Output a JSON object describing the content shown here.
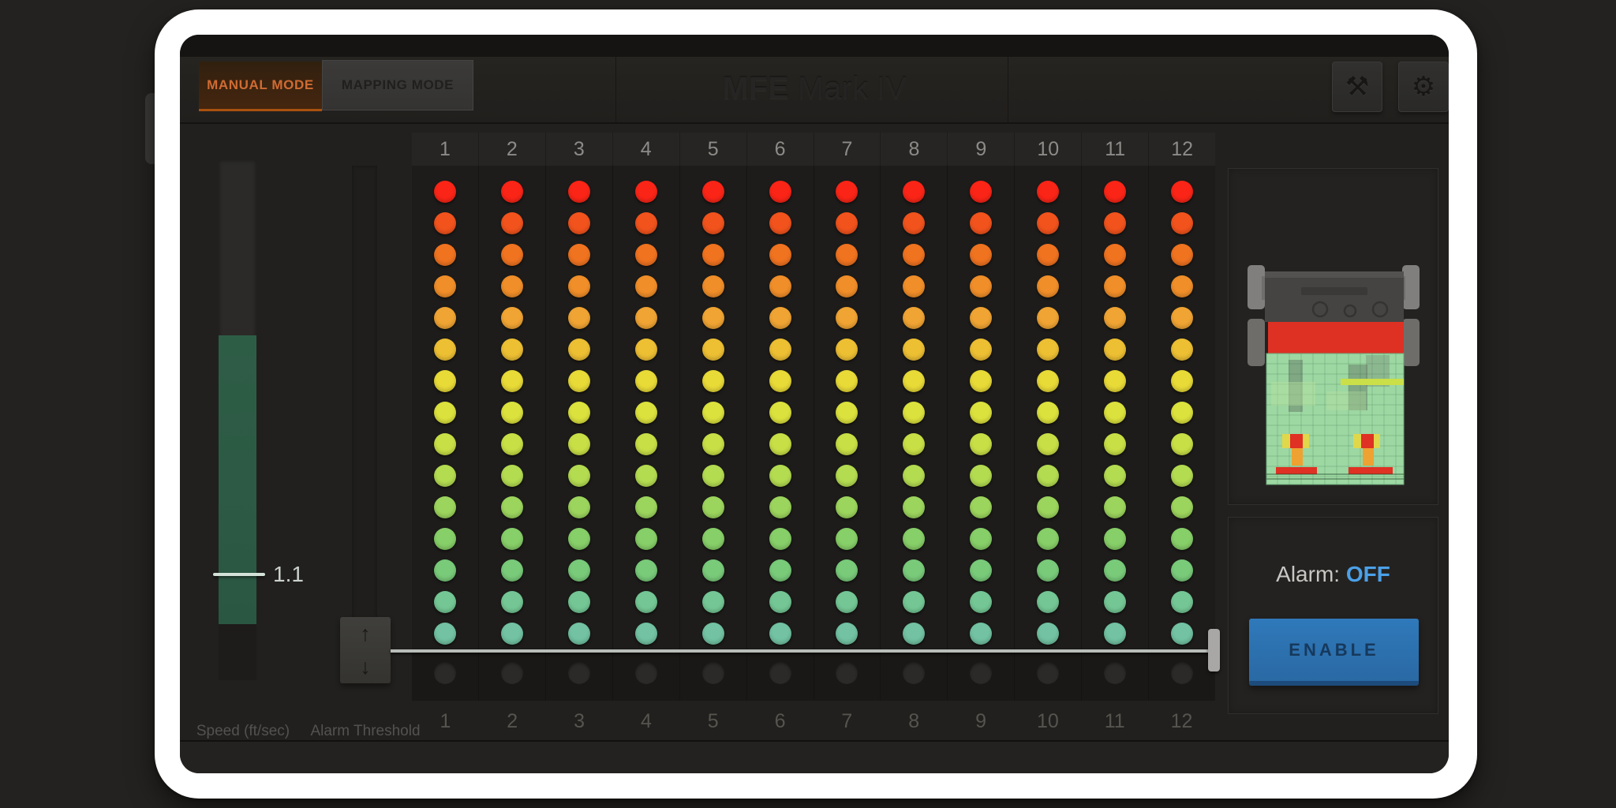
{
  "header": {
    "tabs": [
      {
        "id": "manual",
        "label": "MANUAL MODE",
        "active": true
      },
      {
        "id": "mapping",
        "label": "MAPPING MODE",
        "active": false
      }
    ],
    "title": {
      "brand": "MFE",
      "model": " Mark IV"
    },
    "tools_icon_glyph": "⚒",
    "settings_icon_glyph": "⚙",
    "active_tab_color": "#cf6b33"
  },
  "speed_gauge": {
    "label": "Speed (ft/sec)",
    "value": "1.1",
    "fill_color": "#2e5d46"
  },
  "alarm_threshold": {
    "label": "Alarm Threshold",
    "up_glyph": "↑",
    "down_glyph": "↓"
  },
  "led_grid": {
    "columns": [
      "1",
      "2",
      "3",
      "4",
      "5",
      "6",
      "7",
      "8",
      "9",
      "10",
      "11",
      "12"
    ],
    "rows": 15,
    "row_colors": [
      "#fb2517",
      "#f2531d",
      "#f07320",
      "#f08e29",
      "#f0a433",
      "#edbf33",
      "#e8da37",
      "#dce23d",
      "#c9df46",
      "#b4dc51",
      "#9cd55d",
      "#87cf68",
      "#79cb7a",
      "#74c795",
      "#72c2a3"
    ],
    "disabled_row_color": "#2b2a28"
  },
  "alarm": {
    "label": "Alarm:",
    "status": "OFF",
    "status_color": "#4ba0e8",
    "enable_button": "ENABLE"
  }
}
